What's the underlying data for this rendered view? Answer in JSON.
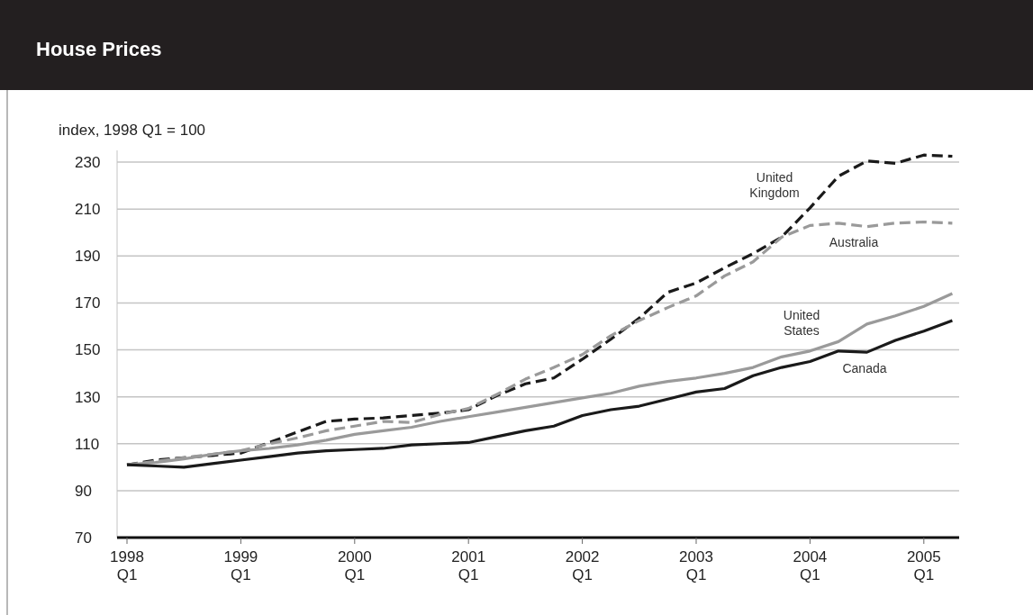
{
  "chart_data": {
    "type": "line",
    "title": "House Prices",
    "ylabel": "index, 1998 Q1 = 100",
    "categories": [
      "1998 Q1",
      null,
      null,
      null,
      "1999 Q1",
      null,
      null,
      null,
      "2000 Q1",
      null,
      null,
      null,
      "2001 Q1",
      null,
      null,
      null,
      "2002 Q1",
      null,
      null,
      null,
      "2003 Q1",
      null,
      null,
      null,
      "2004 Q1",
      null,
      null,
      null,
      "2005 Q1",
      null
    ],
    "ylim": [
      70,
      235
    ],
    "yticks": [
      70,
      90,
      110,
      130,
      150,
      170,
      190,
      210,
      230
    ],
    "grid": "y",
    "legend": false,
    "series": [
      {
        "name": "United Kingdom",
        "color": "#1a1a1a",
        "line_style": "dashed",
        "values": [
          101,
          103,
          104,
          105,
          106,
          110.5,
          115,
          119.5,
          120.5,
          121,
          122,
          123,
          124.5,
          130.5,
          135.5,
          138,
          146,
          154.5,
          163.5,
          174.5,
          178.5,
          185,
          191,
          198,
          210.5,
          224,
          230.5,
          229.5,
          233,
          232.5
        ]
      },
      {
        "name": "Australia",
        "color": "#9a9a9a",
        "line_style": "dashed",
        "values": [
          101,
          102.5,
          104,
          105.5,
          107,
          110,
          112.5,
          115.5,
          117.5,
          119.5,
          119,
          122.5,
          125,
          131,
          137.5,
          142.5,
          148,
          156,
          162.5,
          168,
          173,
          181.5,
          187.5,
          198,
          203,
          204,
          202.5,
          204,
          204.5,
          204
        ]
      },
      {
        "name": "United States",
        "color": "#9a9a9a",
        "line_style": "solid",
        "values": [
          101,
          102,
          103.5,
          105.5,
          107,
          108,
          109.5,
          111.5,
          114,
          115.5,
          117,
          119.5,
          121.5,
          123.5,
          125.5,
          127.5,
          129.5,
          131.5,
          134.5,
          136.5,
          138,
          140,
          142.5,
          147,
          149.5,
          153.5,
          161,
          164.5,
          168.5,
          174
        ]
      },
      {
        "name": "Canada",
        "color": "#1a1a1a",
        "line_style": "solid",
        "values": [
          101,
          100.5,
          100,
          101.5,
          103,
          104.5,
          106,
          107,
          107.5,
          108,
          109.5,
          110,
          110.5,
          113,
          115.5,
          117.5,
          122,
          124.5,
          126,
          129,
          132,
          133.5,
          139,
          142.5,
          145,
          149.5,
          149,
          154,
          158,
          162.5
        ]
      }
    ]
  }
}
